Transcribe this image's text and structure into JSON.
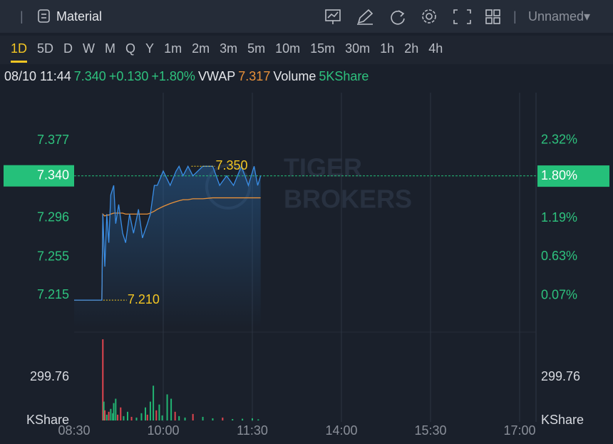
{
  "toolbar": {
    "title": "Material",
    "layout_name": "Unnamed▾"
  },
  "periods": [
    "1D",
    "5D",
    "D",
    "W",
    "M",
    "Q",
    "Y",
    "1m",
    "2m",
    "3m",
    "5m",
    "10m",
    "15m",
    "30m",
    "1h",
    "2h",
    "4h"
  ],
  "active_period": 0,
  "info": {
    "time": "08/10 11:44",
    "price": "7.340",
    "change": "+0.130",
    "change_pct": "+1.80%",
    "vwap_label": "VWAP",
    "vwap": "7.317",
    "volume_label": "Volume",
    "volume": "5KShare"
  },
  "watermark": [
    "TIGER",
    "BROKERS"
  ],
  "chart_data": [
    {
      "type": "line",
      "x": [
        "08:30",
        "08:58",
        "08:59",
        "09:01",
        "09:03",
        "09:05",
        "09:07",
        "09:10",
        "09:12",
        "09:15",
        "09:19",
        "09:22",
        "09:26",
        "09:30",
        "09:35",
        "09:39",
        "09:44",
        "09:47",
        "09:51",
        "09:54",
        "10:00",
        "10:07",
        "10:13",
        "10:16",
        "10:20",
        "10:25",
        "10:30",
        "10:40",
        "10:50",
        "10:57",
        "11:04",
        "11:11",
        "11:19",
        "11:26",
        "11:33",
        "11:39",
        "11:44"
      ],
      "series": [
        {
          "color": "#3a8ee6",
          "values": [
            7.21,
            7.21,
            7.3,
            7.245,
            7.3,
            7.27,
            7.32,
            7.33,
            7.29,
            7.31,
            7.28,
            7.27,
            7.3,
            7.28,
            7.305,
            7.275,
            7.29,
            7.3,
            7.33,
            7.33,
            7.345,
            7.33,
            7.345,
            7.35,
            7.34,
            7.35,
            7.34,
            7.35,
            7.35,
            7.33,
            7.34,
            7.33,
            7.35,
            7.33,
            7.35,
            7.33,
            7.34
          ]
        },
        {
          "color": "#e8913a",
          "values": [
            7.21,
            7.21,
            7.3,
            7.298,
            7.299,
            7.299,
            7.3,
            7.301,
            7.301,
            7.301,
            7.301,
            7.3,
            7.3,
            7.3,
            7.3,
            7.3,
            7.3,
            7.301,
            7.303,
            7.305,
            7.308,
            7.311,
            7.313,
            7.314,
            7.315,
            7.315,
            7.316,
            7.316,
            7.317,
            7.317,
            7.317,
            7.317,
            7.317,
            7.317,
            7.317,
            7.317,
            7.317
          ]
        }
      ],
      "xticks": [
        "08:30",
        "10:00",
        "11:30",
        "14:00",
        "15:30",
        "17:00"
      ],
      "ylim": [
        7.181,
        7.427
      ],
      "yticks": [
        7.377,
        {
          "value": 7.34,
          "label": "7.340"
        },
        7.296,
        7.255,
        7.215
      ],
      "y2lim": [
        -0.4,
        3.01
      ],
      "y2ticks": [
        {
          "value": 2.32,
          "label": "2.32%"
        },
        {
          "value": 1.8,
          "label": "1.80%"
        },
        {
          "value": 1.19,
          "label": "1.19%"
        },
        {
          "value": 0.63,
          "label": "0.63%"
        },
        {
          "value": 0.07,
          "label": "0.07%"
        }
      ],
      "current": {
        "value": 7.34,
        "tick": 1,
        "y2tick": 1,
        "color": "#25c07a"
      },
      "annotations": [
        {
          "x": "10:27",
          "value": 7.35,
          "label": "7.350"
        },
        {
          "x": "08:58",
          "value": 7.21,
          "label": "7.210"
        }
      ],
      "grid": true
    },
    {
      "type": "bar",
      "x": [
        "08:59",
        "09:00",
        "09:01",
        "09:03",
        "09:05",
        "09:07",
        "09:09",
        "09:10",
        "09:12",
        "09:14",
        "09:17",
        "09:20",
        "09:24",
        "09:28",
        "09:33",
        "09:38",
        "09:42",
        "09:44",
        "09:47",
        "09:50",
        "09:53",
        "09:56",
        "09:59",
        "10:04",
        "10:08",
        "10:12",
        "10:16",
        "10:22",
        "10:30",
        "10:40",
        "10:50",
        "11:00",
        "11:10",
        "11:20",
        "11:30",
        "11:40"
      ],
      "values": [
        560,
        130,
        70,
        40,
        60,
        80,
        50,
        120,
        150,
        40,
        90,
        30,
        60,
        25,
        20,
        50,
        90,
        40,
        130,
        240,
        70,
        110,
        35,
        180,
        150,
        60,
        30,
        20,
        45,
        25,
        15,
        20,
        10,
        12,
        15,
        8
      ],
      "colors": [
        "#e0454f",
        "#22b573",
        "#e0454f",
        "#22b573",
        "#e0454f",
        "#22b573",
        "#22b573",
        "#22b573",
        "#22b573",
        "#e0454f",
        "#e0454f",
        "#22b573",
        "#22b573",
        "#e0454f",
        "#22b573",
        "#22b573",
        "#22b573",
        "#e0454f",
        "#22b573",
        "#22b573",
        "#e0454f",
        "#22b573",
        "#22b573",
        "#22b573",
        "#22b573",
        "#e0454f",
        "#22b573",
        "#22b573",
        "#e0454f",
        "#22b573",
        "#22b573",
        "#e0454f",
        "#22b573",
        "#22b573",
        "#22b573",
        "#22b573"
      ],
      "ylim": [
        0,
        590
      ],
      "yticks": [
        {
          "value": 0,
          "label": "KShare"
        },
        299.76
      ]
    }
  ]
}
